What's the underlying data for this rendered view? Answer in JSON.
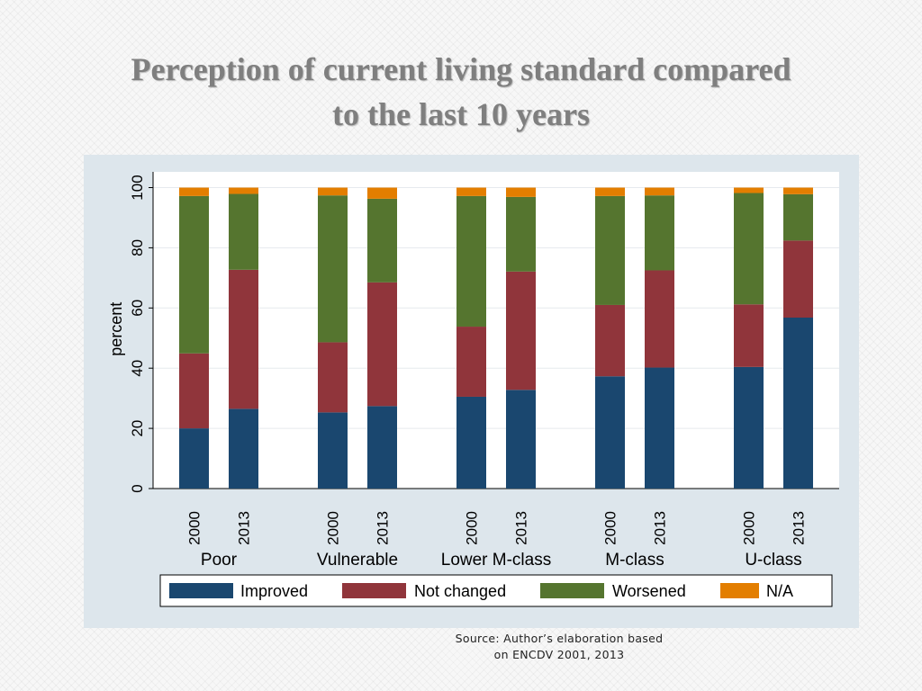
{
  "title": {
    "line1": "Perception of current living standard compared",
    "line2": "to the last 10 years"
  },
  "source": {
    "line1": "Source: Author’s elaboration based",
    "line2": "on ENCDV 2001, 2013"
  },
  "chart_data": {
    "type": "bar",
    "stacked": true,
    "ylabel": "percent",
    "ylim": [
      0,
      105
    ],
    "yticks": [
      0,
      20,
      40,
      60,
      80,
      100
    ],
    "groups": [
      "Poor",
      "Vulnerable",
      "Lower M-class",
      "M-class",
      "U-class"
    ],
    "years": [
      "2000",
      "2013"
    ],
    "series": [
      {
        "name": "Improved",
        "color": "#1a476f",
        "values": [
          [
            20,
            26.5
          ],
          [
            25.3,
            27.4
          ],
          [
            30.5,
            32.8
          ],
          [
            37.3,
            40.2
          ],
          [
            40.4,
            56.8
          ]
        ]
      },
      {
        "name": "Not changed",
        "color": "#90353b",
        "values": [
          [
            24.9,
            46.2
          ],
          [
            23.3,
            41.1
          ],
          [
            23.3,
            39.3
          ],
          [
            23.7,
            32.3
          ],
          [
            20.8,
            25.6
          ]
        ]
      },
      {
        "name": "Worsened",
        "color": "#55752f",
        "values": [
          [
            52.3,
            25.2
          ],
          [
            48.8,
            27.8
          ],
          [
            43.4,
            24.8
          ],
          [
            36.2,
            24.9
          ],
          [
            37,
            15.4
          ]
        ]
      },
      {
        "name": "N/A",
        "color": "#e37e00",
        "values": [
          [
            2.8,
            2.1
          ],
          [
            2.6,
            3.7
          ],
          [
            2.8,
            3.1
          ],
          [
            2.8,
            2.6
          ],
          [
            1.8,
            2.2
          ]
        ]
      }
    ],
    "legend_position": "bottom",
    "grid": true
  }
}
